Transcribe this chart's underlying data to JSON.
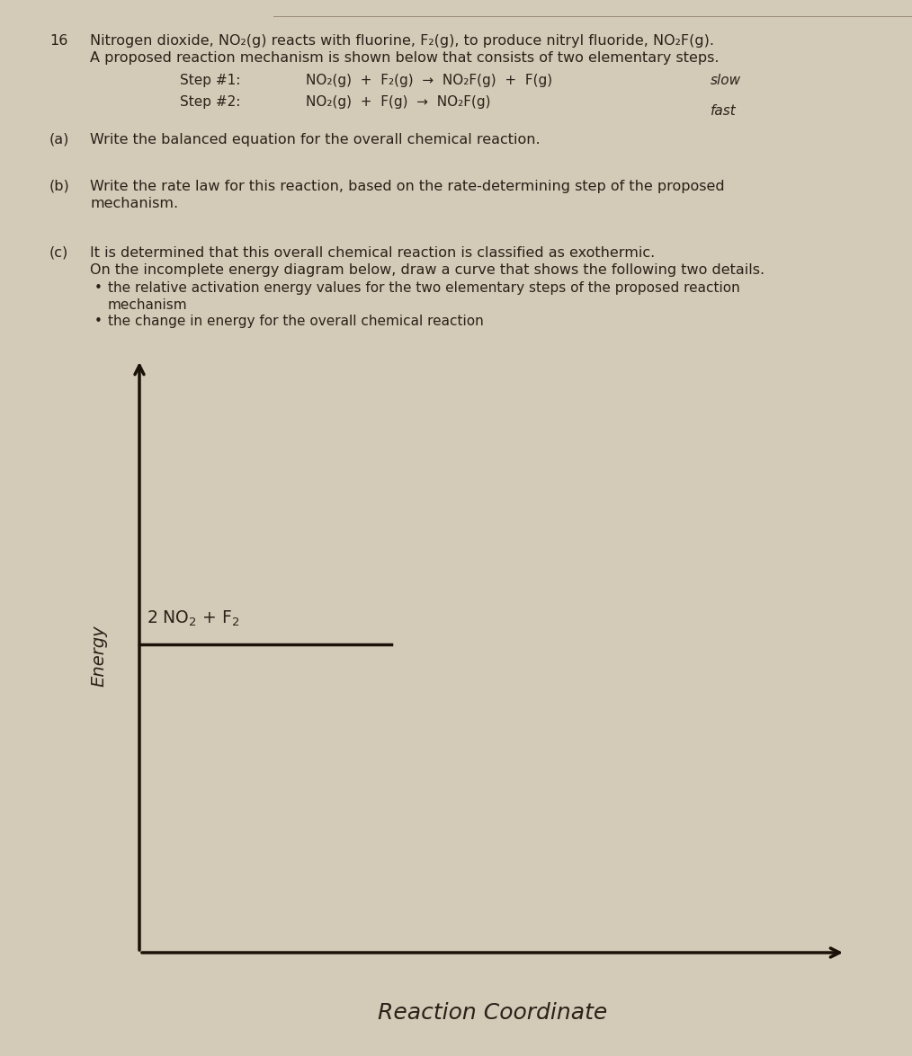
{
  "background_color": "#d4cab8",
  "text_color": "#2a2218",
  "title_number": "16",
  "title_line1": "Nitrogen dioxide, NO₂(g) reacts with fluorine, F₂(g), to produce nitryl fluoride, NO₂F(g).",
  "title_line2": "A proposed reaction mechanism is shown below that consists of two elementary steps.",
  "step1_label": "Step #1:",
  "step1_eq": "NO₂(g)  +  F₂(g)  →  NO₂F(g)  +  F(g)",
  "step1_rate": "slow",
  "step2_label": "Step #2:",
  "step2_eq": "NO₂(g)  +  F(g)  →  NO₂F(g)",
  "step2_rate": "fast",
  "part_a_label": "(a)",
  "part_a_text": "Write the balanced equation for the overall chemical reaction.",
  "part_b_label": "(b)",
  "part_b_line1": "Write the rate law for this reaction, based on the rate-determining step of the proposed",
  "part_b_line2": "mechanism.",
  "part_c_label": "(c)",
  "part_c_line1": "It is determined that this overall chemical reaction is classified as exothermic.",
  "part_c_line2": "On the incomplete energy diagram below, draw a curve that shows the following two details.",
  "bullet1_line1": "the relative activation energy values for the two elementary steps of the proposed reaction",
  "bullet1_line2": "mechanism",
  "bullet2": "the change in energy for the overall chemical reaction",
  "energy_label": "Energy",
  "reactant_label_math": "2 NO$_2$ + F$_2$",
  "x_axis_label": "Reaction Coordinate",
  "axis_color": "#1a1208",
  "fs_title": 11.5,
  "fs_step": 11.0,
  "fs_part": 11.5,
  "fs_bullet": 11.0,
  "fs_energy": 14,
  "fs_rc": 18
}
